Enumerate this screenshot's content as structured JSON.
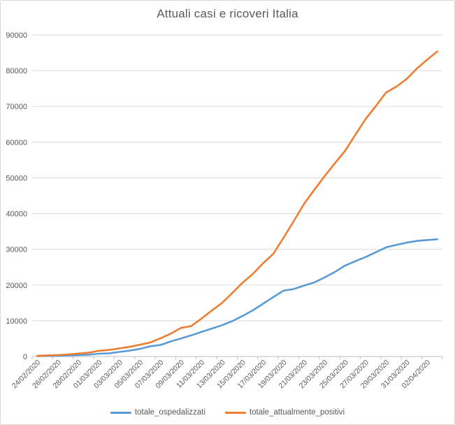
{
  "title": "Attuali casi e ricoveri Italia",
  "colors": {
    "grid": "#d9d9d9",
    "axis": "#bfbfbf",
    "text": "#595959",
    "series_blue": "#5b9bd5",
    "series_orange": "#ed7d31"
  },
  "chart_data": {
    "type": "line",
    "title": "Attuali casi e ricoveri Italia",
    "xlabel": "",
    "ylabel": "",
    "ylim": [
      0,
      90000
    ],
    "y_tick_step": 10000,
    "y_tick_labels": [
      "0",
      "10000",
      "20000",
      "30000",
      "40000",
      "50000",
      "60000",
      "70000",
      "80000",
      "90000"
    ],
    "grid": "horizontal",
    "legend_position": "bottom",
    "x_label_rotation": 45,
    "x": [
      "24/02/2020",
      "25/02/2020",
      "26/02/2020",
      "27/02/2020",
      "28/02/2020",
      "29/02/2020",
      "01/03/2020",
      "02/03/2020",
      "03/03/2020",
      "04/03/2020",
      "05/03/2020",
      "06/03/2020",
      "07/03/2020",
      "08/03/2020",
      "09/03/2020",
      "10/03/2020",
      "11/03/2020",
      "12/03/2020",
      "13/03/2020",
      "14/03/2020",
      "15/03/2020",
      "16/03/2020",
      "17/03/2020",
      "18/03/2020",
      "19/03/2020",
      "20/03/2020",
      "21/03/2020",
      "22/03/2020",
      "23/03/2020",
      "24/03/2020",
      "25/03/2020",
      "26/03/2020",
      "27/03/2020",
      "28/03/2020",
      "29/03/2020",
      "30/03/2020",
      "31/03/2020",
      "01/04/2020",
      "02/04/2020",
      "03/04/2020"
    ],
    "x_tick_labels": [
      "24/02/2020",
      "26/02/2020",
      "28/02/2020",
      "01/03/2020",
      "03/03/2020",
      "05/03/2020",
      "07/03/2020",
      "09/03/2020",
      "11/03/2020",
      "13/03/2020",
      "15/03/2020",
      "17/03/2020",
      "19/03/2020",
      "21/03/2020",
      "23/03/2020",
      "25/03/2020",
      "27/03/2020",
      "29/03/2020",
      "31/03/2020",
      "02/04/2020"
    ],
    "series": [
      {
        "name": "totale_ospedalizzati",
        "color": "#5b9bd5",
        "values": [
          127,
          150,
          164,
          304,
          409,
          506,
          779,
          908,
          1263,
          1641,
          2141,
          2856,
          3218,
          4207,
          5049,
          5915,
          6866,
          7803,
          8754,
          9890,
          11335,
          12894,
          14743,
          16620,
          18412,
          18877,
          19846,
          20717,
          22116,
          23626,
          25426,
          26676,
          27828,
          29165,
          30532,
          31218,
          31851,
          32342,
          32593,
          32809
        ]
      },
      {
        "name": "totale_attualmente_positivi",
        "color": "#ed7d31",
        "values": [
          221,
          311,
          385,
          588,
          821,
          1049,
          1577,
          1835,
          2263,
          2706,
          3296,
          3916,
          5061,
          6387,
          7985,
          8514,
          10590,
          12839,
          14955,
          17750,
          20603,
          23073,
          26062,
          28710,
          33190,
          37860,
          42681,
          46638,
          50418,
          54030,
          57521,
          62013,
          66414,
          70065,
          73880,
          75528,
          77635,
          80572,
          83049,
          85388
        ]
      }
    ]
  }
}
